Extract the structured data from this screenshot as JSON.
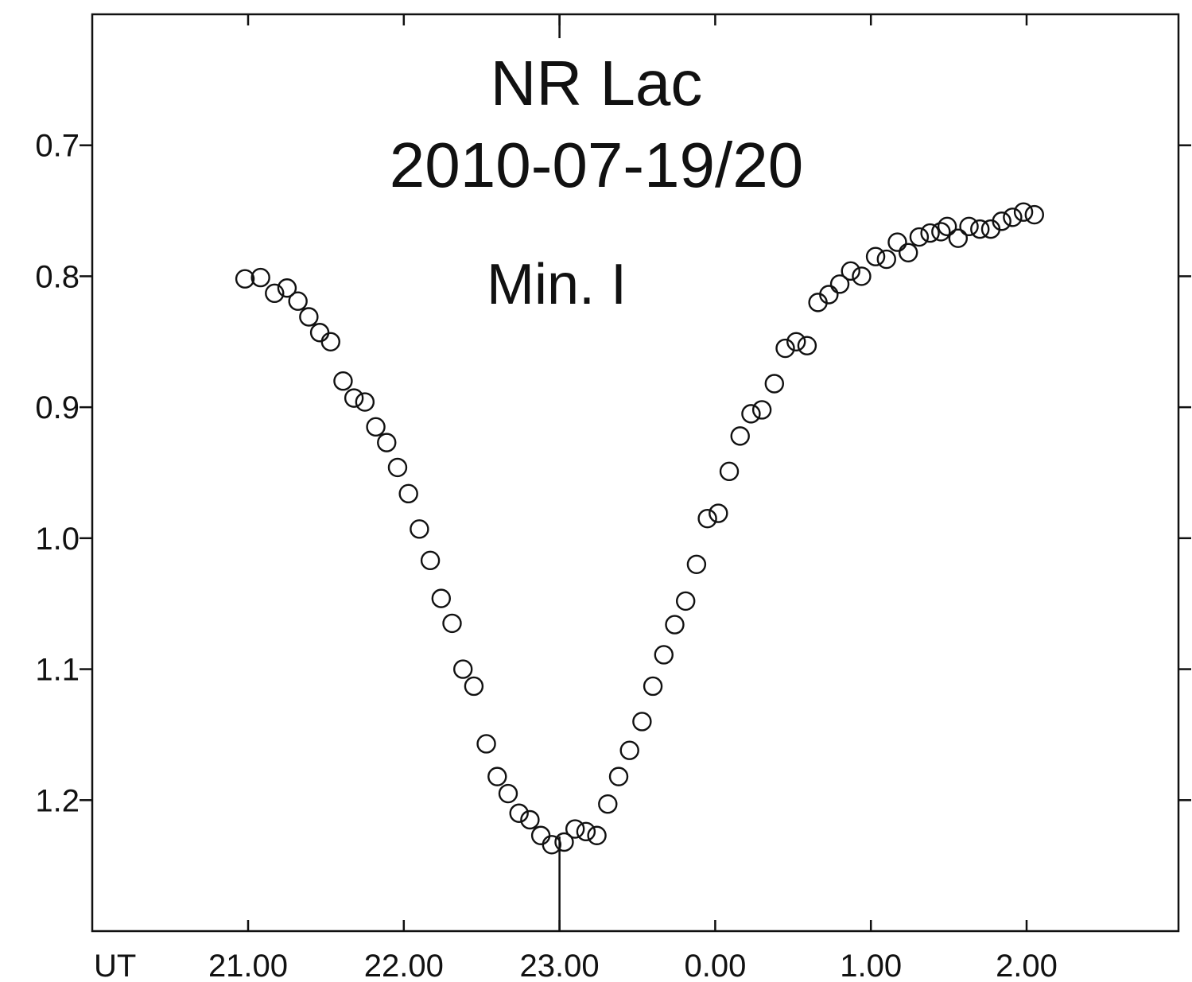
{
  "chart_data": {
    "type": "scatter",
    "title": "NR Lac",
    "subtitle": "2010-07-19/20",
    "annotation": "Min. I",
    "xlabel": "UT",
    "ylabel": "",
    "x_tick_labels": [
      "21.00",
      "22.00",
      "23.00",
      "0.00",
      "1.00",
      "2.00"
    ],
    "y_tick_labels": [
      "0.7",
      "0.8",
      "0.9",
      "1.0",
      "1.1",
      "1.2"
    ],
    "x_ticks_hours": [
      0,
      1,
      2,
      3,
      4,
      5
    ],
    "y_ticks": [
      0.7,
      0.8,
      0.9,
      1.0,
      1.1,
      1.2
    ],
    "xlim_hours_from_21": [
      -1,
      6
    ],
    "ylim": [
      0.6,
      1.3
    ],
    "y_inverted": true,
    "grid": false,
    "marker": "open-circle",
    "minimum_marker_time": "23.00",
    "points": [
      {
        "x": "20.98",
        "y": 0.802
      },
      {
        "x": "21.08",
        "y": 0.801
      },
      {
        "x": "21.17",
        "y": 0.813
      },
      {
        "x": "21.25",
        "y": 0.809
      },
      {
        "x": "21.32",
        "y": 0.819
      },
      {
        "x": "21.39",
        "y": 0.831
      },
      {
        "x": "21.46",
        "y": 0.843
      },
      {
        "x": "21.53",
        "y": 0.85
      },
      {
        "x": "21.61",
        "y": 0.88
      },
      {
        "x": "21.68",
        "y": 0.893
      },
      {
        "x": "21.75",
        "y": 0.896
      },
      {
        "x": "21.82",
        "y": 0.915
      },
      {
        "x": "21.89",
        "y": 0.927
      },
      {
        "x": "21.96",
        "y": 0.946
      },
      {
        "x": "22.03",
        "y": 0.966
      },
      {
        "x": "22.10",
        "y": 0.993
      },
      {
        "x": "22.17",
        "y": 1.017
      },
      {
        "x": "22.24",
        "y": 1.046
      },
      {
        "x": "22.31",
        "y": 1.065
      },
      {
        "x": "22.38",
        "y": 1.1
      },
      {
        "x": "22.45",
        "y": 1.113
      },
      {
        "x": "22.53",
        "y": 1.157
      },
      {
        "x": "22.60",
        "y": 1.182
      },
      {
        "x": "22.67",
        "y": 1.195
      },
      {
        "x": "22.74",
        "y": 1.21
      },
      {
        "x": "22.81",
        "y": 1.215
      },
      {
        "x": "22.88",
        "y": 1.227
      },
      {
        "x": "22.95",
        "y": 1.234
      },
      {
        "x": "23.03",
        "y": 1.232
      },
      {
        "x": "23.10",
        "y": 1.222
      },
      {
        "x": "23.17",
        "y": 1.224
      },
      {
        "x": "23.24",
        "y": 1.227
      },
      {
        "x": "23.31",
        "y": 1.203
      },
      {
        "x": "23.38",
        "y": 1.182
      },
      {
        "x": "23.45",
        "y": 1.162
      },
      {
        "x": "23.53",
        "y": 1.14
      },
      {
        "x": "23.60",
        "y": 1.113
      },
      {
        "x": "23.67",
        "y": 1.089
      },
      {
        "x": "23.74",
        "y": 1.066
      },
      {
        "x": "23.81",
        "y": 1.048
      },
      {
        "x": "23.88",
        "y": 1.02
      },
      {
        "x": "23.95",
        "y": 0.985
      },
      {
        "x": "0.02",
        "y": 0.981
      },
      {
        "x": "0.09",
        "y": 0.949
      },
      {
        "x": "0.16",
        "y": 0.922
      },
      {
        "x": "0.23",
        "y": 0.905
      },
      {
        "x": "0.30",
        "y": 0.902
      },
      {
        "x": "0.38",
        "y": 0.882
      },
      {
        "x": "0.45",
        "y": 0.855
      },
      {
        "x": "0.52",
        "y": 0.85
      },
      {
        "x": "0.59",
        "y": 0.853
      },
      {
        "x": "0.66",
        "y": 0.82
      },
      {
        "x": "0.73",
        "y": 0.814
      },
      {
        "x": "0.80",
        "y": 0.806
      },
      {
        "x": "0.87",
        "y": 0.796
      },
      {
        "x": "0.94",
        "y": 0.8
      },
      {
        "x": "1.03",
        "y": 0.785
      },
      {
        "x": "1.10",
        "y": 0.787
      },
      {
        "x": "1.17",
        "y": 0.774
      },
      {
        "x": "1.24",
        "y": 0.782
      },
      {
        "x": "1.31",
        "y": 0.77
      },
      {
        "x": "1.38",
        "y": 0.767
      },
      {
        "x": "1.45",
        "y": 0.766
      },
      {
        "x": "1.49",
        "y": 0.762
      },
      {
        "x": "1.56",
        "y": 0.771
      },
      {
        "x": "1.63",
        "y": 0.762
      },
      {
        "x": "1.70",
        "y": 0.764
      },
      {
        "x": "1.77",
        "y": 0.764
      },
      {
        "x": "1.84",
        "y": 0.758
      },
      {
        "x": "1.91",
        "y": 0.755
      },
      {
        "x": "1.98",
        "y": 0.751
      },
      {
        "x": "2.05",
        "y": 0.753
      }
    ]
  }
}
